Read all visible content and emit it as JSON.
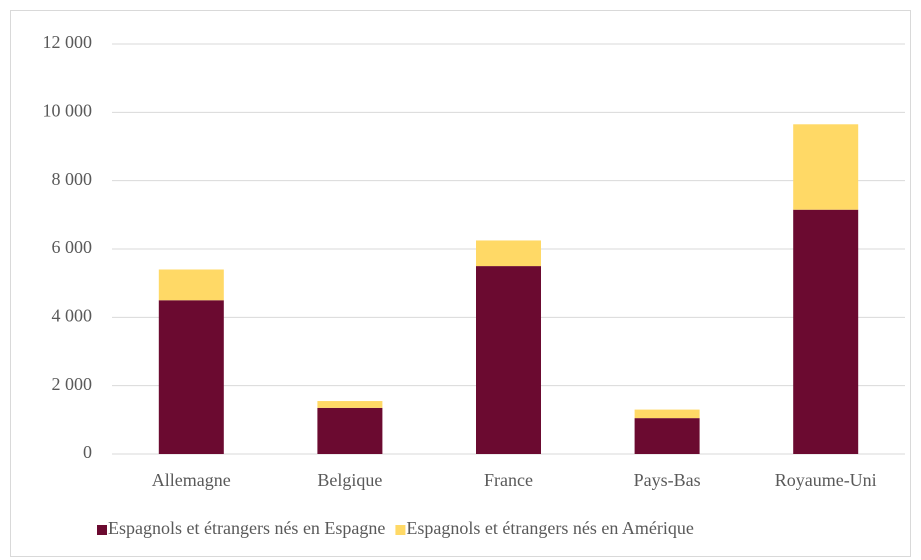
{
  "chart_data": {
    "type": "stacked_bar",
    "categories": [
      "Allemagne",
      "Belgique",
      "France",
      "Pays-Bas",
      "Royaume-Uni"
    ],
    "series": [
      {
        "name": "Espagnols et étrangers nés en Espagne",
        "color": "#6b0a30",
        "values": [
          4500,
          1350,
          5500,
          1050,
          7150
        ]
      },
      {
        "name": "Espagnols et étrangers nés en Amérique",
        "color": "#ffd966",
        "values": [
          900,
          200,
          750,
          250,
          2500
        ]
      }
    ],
    "ylim": [
      0,
      12000
    ],
    "yticks": [
      0,
      {
        "value": 2000,
        "label": "2 000"
      },
      {
        "value": 4000,
        "label": "4 000"
      },
      {
        "value": 6000,
        "label": "6 000"
      },
      {
        "value": 8000,
        "label": "8 000"
      },
      {
        "value": 10000,
        "label": "10 000"
      },
      {
        "value": 12000,
        "label": "12 000"
      }
    ],
    "grid": true,
    "legend": "bottom"
  }
}
